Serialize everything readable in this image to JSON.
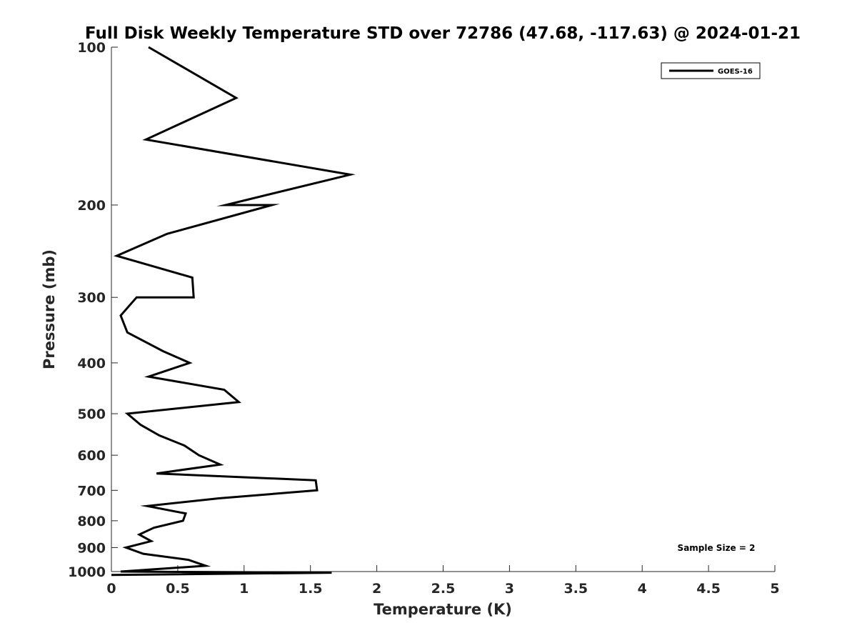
{
  "chart_data": {
    "type": "line",
    "title": "Full Disk Weekly Temperature STD over 72786 (47.68, -117.63) @ 2024-01-21",
    "xlabel": "Temperature (K)",
    "ylabel": "Pressure (mb)",
    "xlim": [
      0,
      5
    ],
    "ylim": [
      100,
      1000
    ],
    "yscale": "log",
    "y_reversed": true,
    "x_ticks": [
      "0",
      "0.5",
      "1",
      "1.5",
      "2",
      "2.5",
      "3",
      "3.5",
      "4",
      "4.5",
      "5"
    ],
    "y_ticks": [
      "100",
      "200",
      "300",
      "400",
      "500",
      "600",
      "700",
      "800",
      "900",
      "1000"
    ],
    "grid": false,
    "legend_position": "top-right",
    "series": [
      {
        "name": "GOES-16",
        "color": "#000000",
        "points": [
          [
            0.28,
            100
          ],
          [
            0.94,
            125
          ],
          [
            0.26,
            150
          ],
          [
            1.8,
            175
          ],
          [
            0.86,
            200
          ],
          [
            1.21,
            200
          ],
          [
            0.42,
            227
          ],
          [
            0.04,
            250
          ],
          [
            0.61,
            275
          ],
          [
            0.62,
            300
          ],
          [
            0.19,
            300
          ],
          [
            0.07,
            325
          ],
          [
            0.12,
            350
          ],
          [
            0.39,
            380
          ],
          [
            0.59,
            400
          ],
          [
            0.28,
            425
          ],
          [
            0.85,
            450
          ],
          [
            0.96,
            475
          ],
          [
            0.12,
            500
          ],
          [
            0.22,
            525
          ],
          [
            0.36,
            550
          ],
          [
            0.55,
            575
          ],
          [
            0.66,
            600
          ],
          [
            0.82,
            625
          ],
          [
            0.34,
            650
          ],
          [
            1.54,
            670
          ],
          [
            1.55,
            700
          ],
          [
            0.81,
            725
          ],
          [
            0.27,
            750
          ],
          [
            0.56,
            775
          ],
          [
            0.54,
            800
          ],
          [
            0.32,
            825
          ],
          [
            0.21,
            850
          ],
          [
            0.3,
            875
          ],
          [
            0.11,
            900
          ],
          [
            0.24,
            925
          ],
          [
            0.58,
            950
          ],
          [
            0.71,
            975
          ],
          [
            0.07,
            1000
          ],
          [
            1.66,
            1005
          ],
          [
            0.0,
            1015
          ]
        ]
      }
    ],
    "annotation": "Sample Size = 2"
  }
}
